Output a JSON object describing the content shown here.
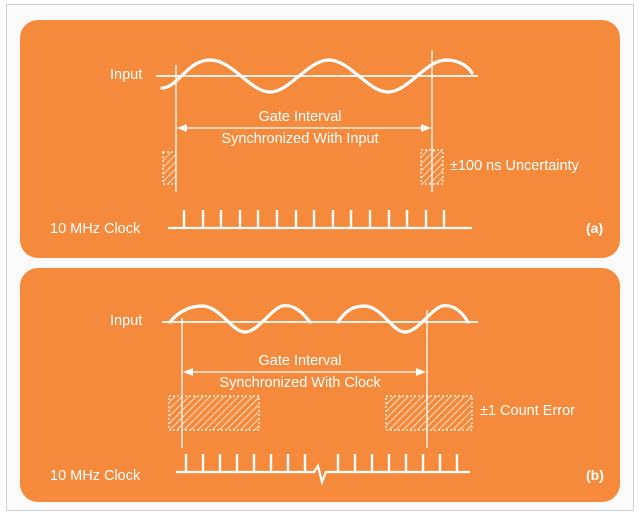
{
  "panel_a": {
    "input_label": "Input",
    "gate_line1": "Gate Interval",
    "gate_line2": "Synchronized With Input",
    "uncertainty_label": "±100 ns Uncertainty",
    "clock_label": "10 MHz Clock",
    "tag": "(a)"
  },
  "panel_b": {
    "input_label": "Input",
    "gate_line1": "Gate Interval",
    "gate_line2": "Synchronized With Clock",
    "error_label": "±1 Count Error",
    "clock_label": "10 MHz Clock",
    "tag": "(b)"
  },
  "colors": {
    "panel_fill": "#f58a3c",
    "line_color": "#ffffff"
  }
}
